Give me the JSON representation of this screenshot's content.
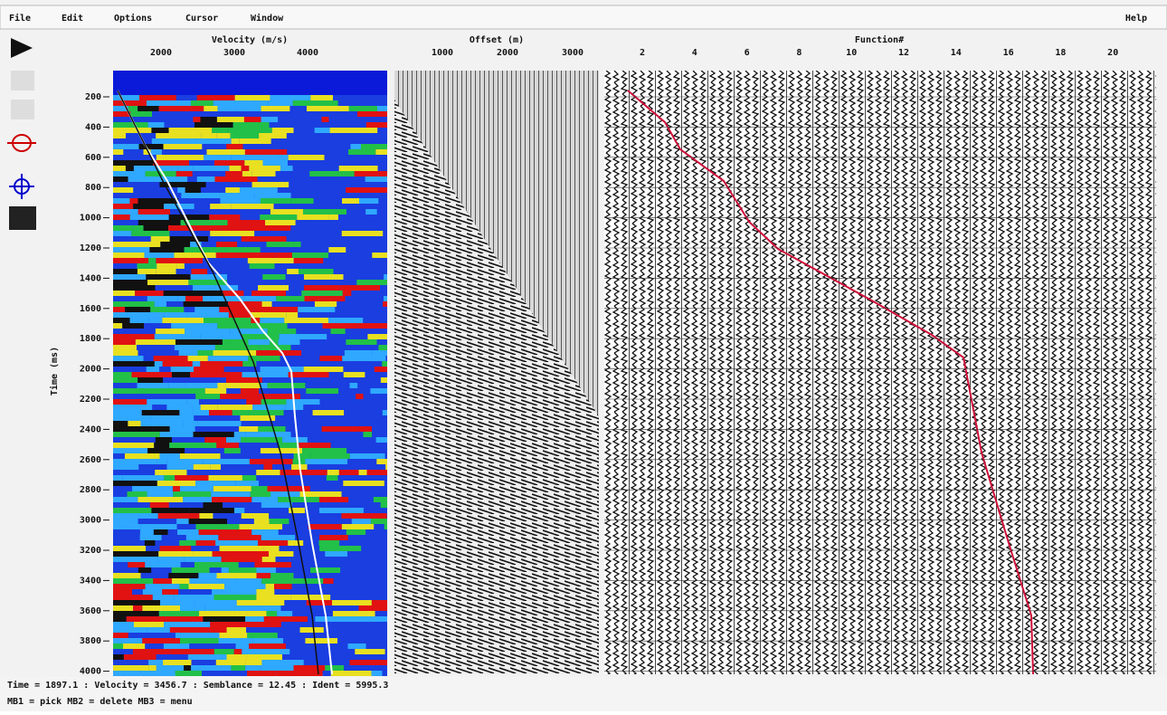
{
  "menu": {
    "items": [
      "File",
      "Edit",
      "Options",
      "Cursor",
      "Window"
    ],
    "help": "Help"
  },
  "semblance": {
    "title": "Velocity (m/s)",
    "ticks": [
      2000,
      3000,
      4000
    ]
  },
  "gather": {
    "title": "Offset (m)",
    "ticks": [
      1000,
      2000,
      3000
    ]
  },
  "functions": {
    "title": "Function#",
    "ticks": [
      2,
      4,
      6,
      8,
      10,
      12,
      14,
      16,
      18,
      20
    ]
  },
  "time_axis": {
    "label": "Time (ms)",
    "ticks": [
      200,
      400,
      600,
      800,
      1000,
      1200,
      1400,
      1600,
      1800,
      2000,
      2200,
      2400,
      2600,
      2800,
      3000,
      3200,
      3400,
      3600,
      3800,
      4000
    ]
  },
  "status": {
    "line1": "Time = 1897.1 : Velocity = 3456.7 : Semblance = 12.45 : Ident = 5995.3",
    "line2": "MB1 = pick  MB2 = delete  MB3 = menu"
  }
}
